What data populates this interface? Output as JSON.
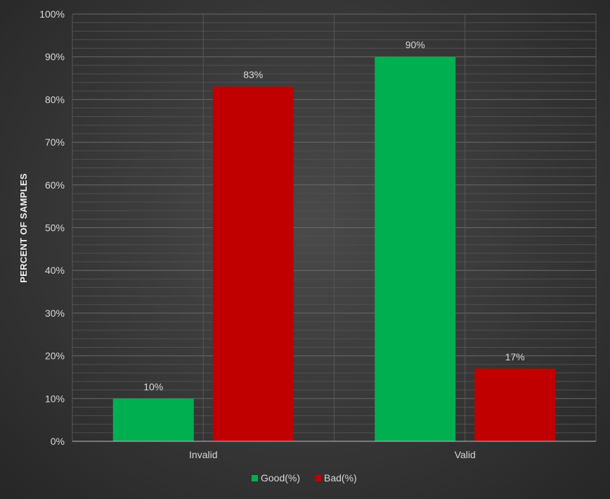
{
  "chart_data": {
    "type": "bar",
    "categories": [
      "Invalid",
      "Valid"
    ],
    "series": [
      {
        "name": "Good(%)",
        "values": [
          10,
          90
        ],
        "labels": [
          "10%",
          "90%"
        ],
        "color": "#00b050"
      },
      {
        "name": "Bad(%)",
        "values": [
          83,
          17
        ],
        "labels": [
          "83%",
          "17%"
        ],
        "color": "#c00000"
      }
    ],
    "title": "",
    "xlabel": "",
    "ylabel": "PERCENT OF SAMPLES",
    "ylim": [
      0,
      100
    ],
    "yticks": [
      "0%",
      "10%",
      "20%",
      "30%",
      "40%",
      "50%",
      "60%",
      "70%",
      "80%",
      "90%",
      "100%"
    ],
    "grid": true,
    "legend": "bottom",
    "background": "#3a3a3a"
  }
}
